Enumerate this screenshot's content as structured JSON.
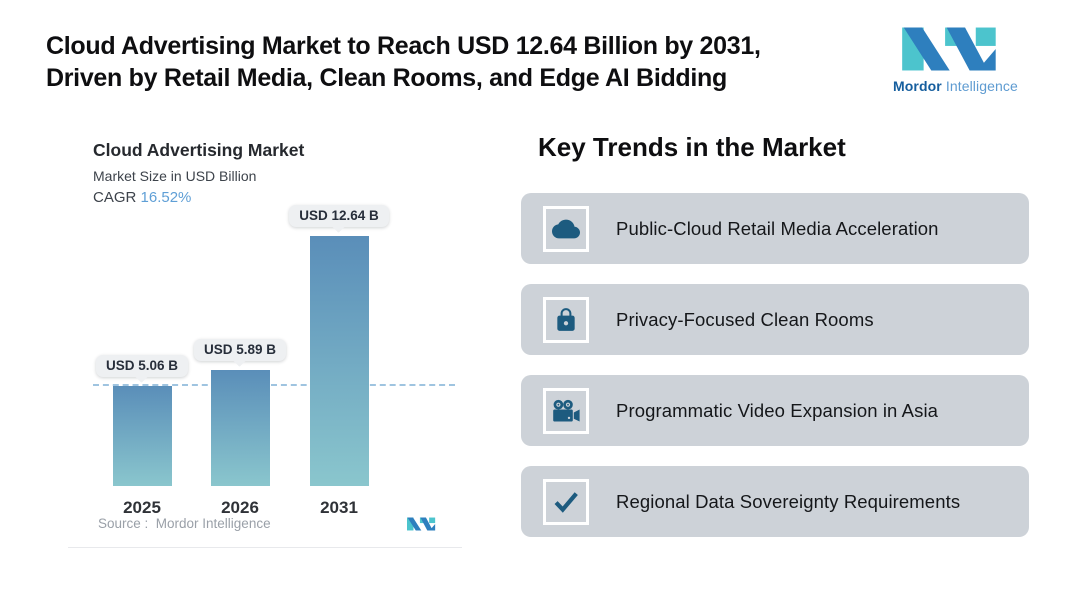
{
  "header": {
    "title_line1": "Cloud Advertising Market to Reach USD 12.64 Billion by 2031,",
    "title_line2": "Driven by Retail Media, Clean Rooms, and Edge AI Bidding"
  },
  "brand": {
    "name_primary": "Mordor",
    "name_secondary": "Intelligence",
    "logo_teal": "#4cc4cd",
    "logo_blue": "#2e7fbe"
  },
  "chart_data": {
    "type": "bar",
    "title": "Cloud Advertising Market",
    "subtitle": "Market Size in USD Billion",
    "cagr_label": "CAGR",
    "cagr_value": "16.52%",
    "categories": [
      "2025",
      "2026",
      "2031"
    ],
    "values": [
      5.06,
      5.89,
      12.64
    ],
    "bar_labels": [
      "USD 5.06 B",
      "USD 5.89 B",
      "USD 12.64 B"
    ],
    "reference_line_value": 5.06,
    "ylim": [
      0,
      13
    ],
    "grid": false,
    "legend": "none",
    "source": "Source :  Mordor Intelligence",
    "bar_gradient_top": "#5a8eb9",
    "bar_gradient_bottom": "#8ac6cd",
    "cagr_value_color": "#5f9fd6",
    "reference_line_color": "#9fc4e0"
  },
  "key_trends": {
    "heading": "Key Trends in the Market",
    "card_background": "#cdd2d8",
    "icon_color": "#1d5b7f",
    "items": [
      {
        "icon": "cloud-icon",
        "label": "Public-Cloud Retail Media Acceleration"
      },
      {
        "icon": "lock-icon",
        "label": "Privacy-Focused Clean Rooms"
      },
      {
        "icon": "video-camera-icon",
        "label": "Programmatic Video Expansion in Asia"
      },
      {
        "icon": "checkmark-icon",
        "label": "Regional Data Sovereignty Requirements"
      }
    ]
  }
}
